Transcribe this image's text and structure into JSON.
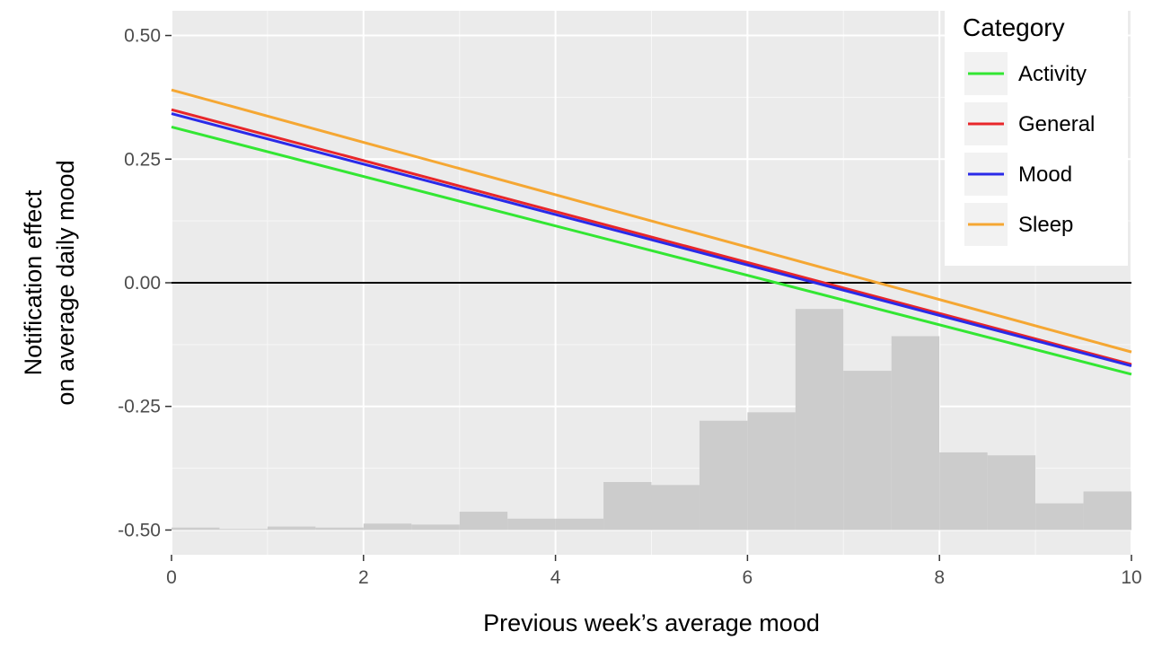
{
  "chart_data": {
    "type": "line",
    "xlabel": "Previous week’s average mood",
    "ylabel_lines": [
      "Notification effect",
      "on average daily mood"
    ],
    "xlim": [
      0,
      10
    ],
    "ylim": [
      -0.55,
      0.55
    ],
    "x_ticks": [
      0,
      2,
      4,
      6,
      8,
      10
    ],
    "x_tick_labels": [
      "0",
      "2",
      "4",
      "6",
      "8",
      "10"
    ],
    "y_ticks": [
      -0.5,
      -0.25,
      0.0,
      0.25,
      0.5
    ],
    "y_tick_labels": [
      "-0.50",
      "-0.25",
      "0.00",
      "0.25",
      "0.50"
    ],
    "grid": true,
    "reference_line": {
      "y": 0.0,
      "color": "#000000"
    },
    "legend": {
      "title": "Category",
      "position": "top-right"
    },
    "series": [
      {
        "name": "Activity",
        "color": "#33e633",
        "x": [
          0,
          10
        ],
        "y": [
          0.315,
          -0.185
        ]
      },
      {
        "name": "General",
        "color": "#e8262a",
        "x": [
          0,
          10
        ],
        "y": [
          0.35,
          -0.165
        ]
      },
      {
        "name": "Mood",
        "color": "#2a2ae8",
        "x": [
          0,
          10
        ],
        "y": [
          0.342,
          -0.168
        ]
      },
      {
        "name": "Sleep",
        "color": "#f5a733",
        "x": [
          0,
          10
        ],
        "y": [
          0.39,
          -0.14
        ]
      }
    ],
    "histogram": {
      "baseline": -0.5,
      "color": "#cccccc",
      "bin_width": 0.5,
      "bin_starts": [
        0,
        0.5,
        1,
        1.5,
        2,
        2.5,
        3,
        3.5,
        4,
        4.5,
        5,
        5.5,
        6,
        6.5,
        7,
        7.5,
        8,
        8.5,
        9,
        9.5
      ],
      "bin_tops": [
        -0.495,
        -0.498,
        -0.493,
        -0.495,
        -0.487,
        -0.489,
        -0.463,
        -0.477,
        -0.477,
        -0.403,
        -0.409,
        -0.279,
        -0.262,
        -0.053,
        -0.178,
        -0.108,
        -0.343,
        -0.349,
        -0.446,
        -0.422
      ]
    }
  }
}
